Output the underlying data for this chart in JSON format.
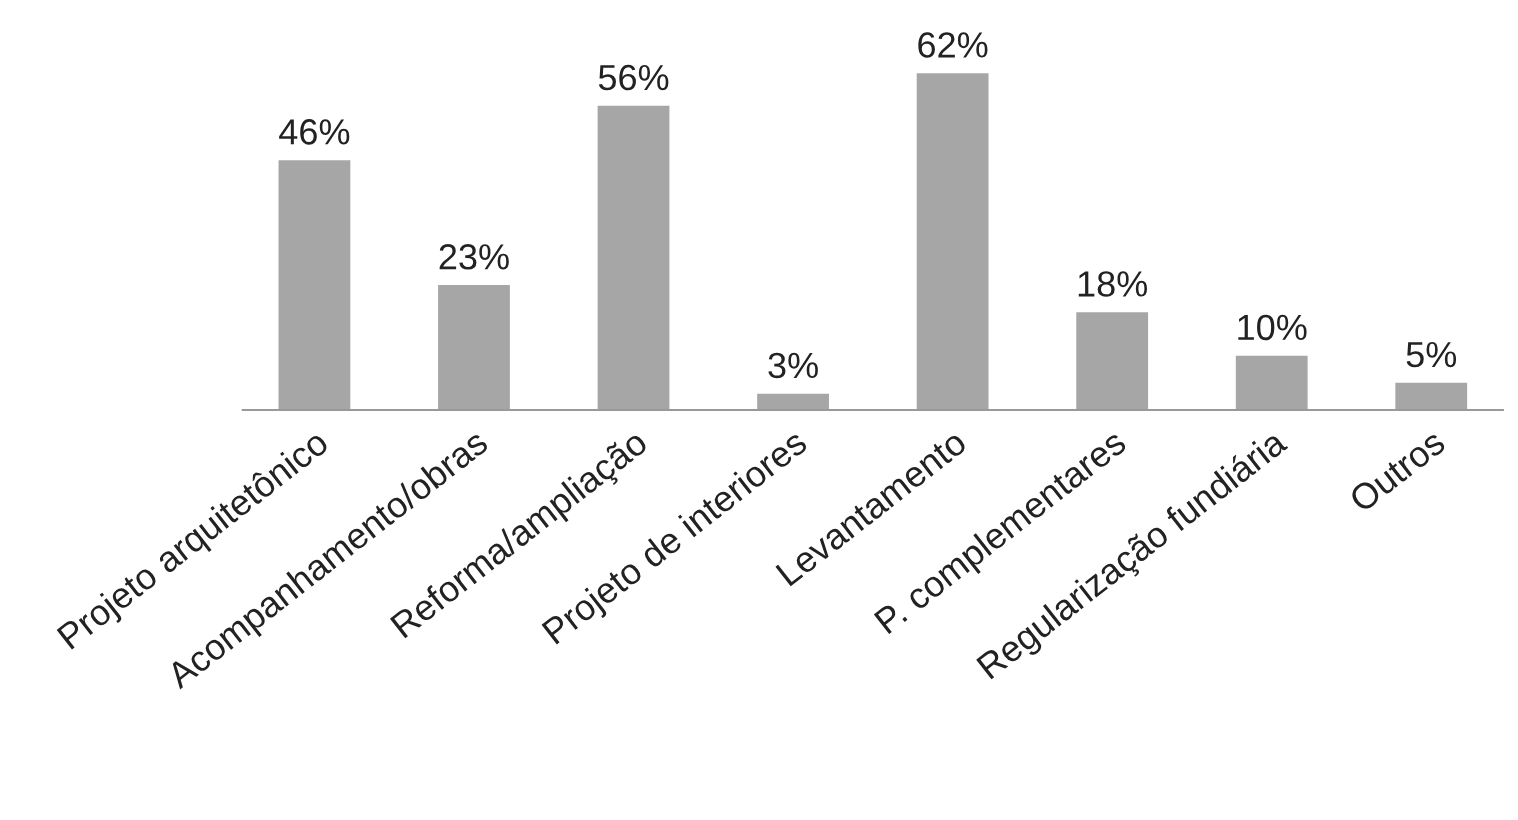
{
  "chart_data": {
    "type": "bar",
    "categories": [
      "Projeto arquitetônico",
      "Acompanhamento/obras",
      "Reforma/ampliação",
      "Projeto de interiores",
      "Levantamento",
      "P. complementares",
      "Regularização fundiária",
      "Outros"
    ],
    "values": [
      46,
      23,
      56,
      3,
      62,
      18,
      10,
      5
    ],
    "value_labels": [
      "46%",
      "23%",
      "56%",
      "3%",
      "62%",
      "18%",
      "10%",
      "5%"
    ],
    "color": "#a6a6a6"
  }
}
